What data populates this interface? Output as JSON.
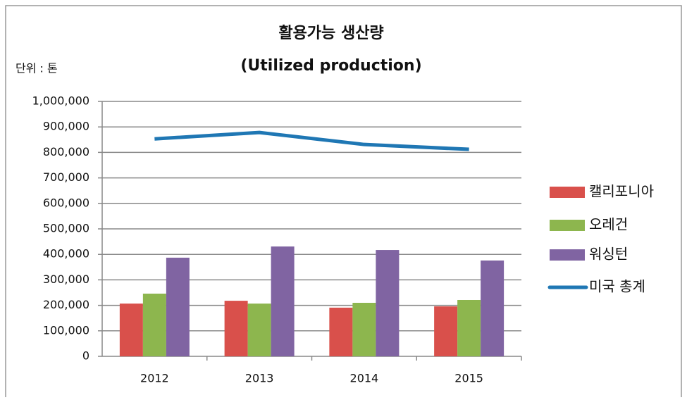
{
  "chart_data": {
    "type": "bar",
    "title": "활용가능 생산량",
    "subtitle": "(Utilized production)",
    "y_label": "단위 : 톤",
    "categories": [
      "2012",
      "2013",
      "2014",
      "2015"
    ],
    "series": [
      {
        "name": "캘리포니아",
        "color": "#d9504b",
        "type": "bar",
        "values": [
          207000,
          218000,
          191000,
          196000
        ]
      },
      {
        "name": "오레건",
        "color": "#8db64e",
        "type": "bar",
        "values": [
          246000,
          207000,
          210000,
          221000
        ]
      },
      {
        "name": "워싱턴",
        "color": "#8064a2",
        "type": "bar",
        "values": [
          387000,
          431000,
          417000,
          376000
        ]
      },
      {
        "name": "미국 총계",
        "color": "#1f77b4",
        "type": "line",
        "values": [
          853000,
          878000,
          831000,
          812000
        ]
      }
    ],
    "ylim": [
      0,
      1000000
    ],
    "yticks": [
      0,
      {
        "value": 100000,
        "label": "100,000"
      },
      {
        "value": 200000,
        "label": "200,000"
      },
      {
        "value": 300000,
        "label": "300,000"
      },
      {
        "value": 400000,
        "label": "400,000"
      },
      {
        "value": 500000,
        "label": "500,000"
      },
      {
        "value": 600000,
        "label": "600,000"
      },
      {
        "value": 700000,
        "label": "700,000"
      },
      {
        "value": 800000,
        "label": "800,000"
      },
      {
        "value": 900000,
        "label": "900,000"
      },
      {
        "value": 1000000,
        "label": "1,000,000"
      }
    ],
    "grid": true,
    "legend": "right"
  }
}
